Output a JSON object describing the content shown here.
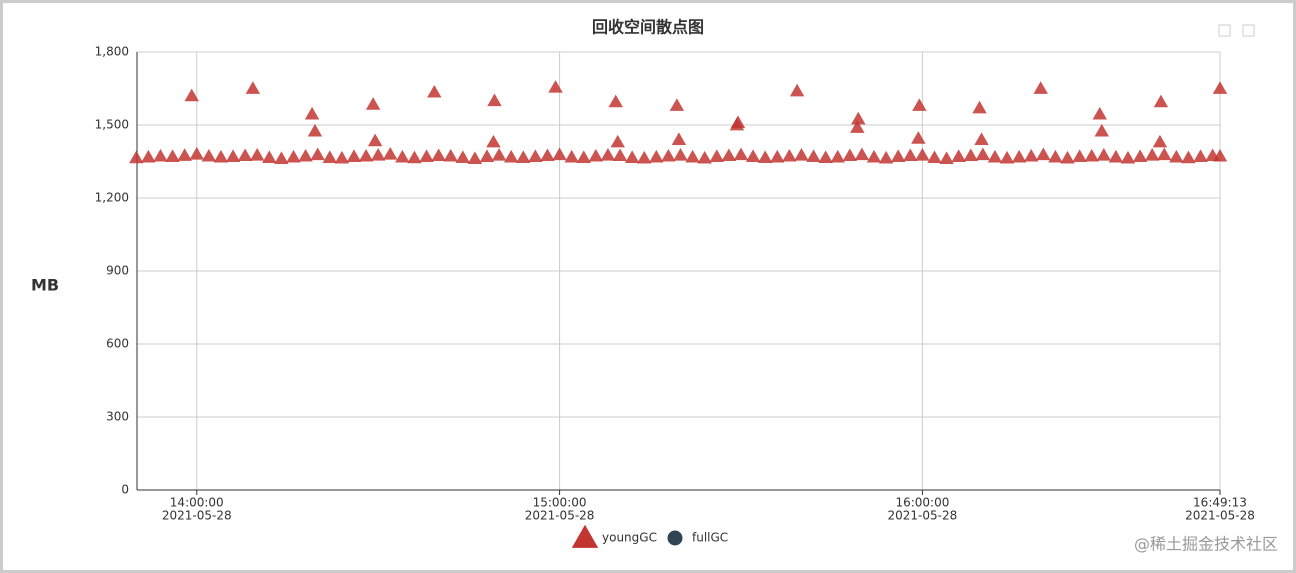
{
  "chart_data": {
    "type": "scatter",
    "title": "回收空间散点图",
    "y_label": "MB",
    "watermark": "@稀土掘金技术社区",
    "ylim": [
      0,
      1800
    ],
    "yticks": [
      0,
      300,
      600,
      900,
      {
        "value": 1200,
        "label": "1,200"
      },
      {
        "value": 1500,
        "label": "1,500"
      },
      {
        "value": 1800,
        "label": "1,800"
      }
    ],
    "xlim": [
      "2021-05-28 13:50:07",
      "2021-05-28 16:49:13"
    ],
    "xticks": [
      {
        "value": "2021-05-28 14:00:00",
        "label": [
          "14:00:00",
          "2021-05-28"
        ]
      },
      {
        "value": "2021-05-28 15:00:00",
        "label": [
          "15:00:00",
          "2021-05-28"
        ]
      },
      {
        "value": "2021-05-28 16:00:00",
        "label": [
          "16:00:00",
          "2021-05-28"
        ]
      },
      {
        "value": "2021-05-28 16:49:13",
        "label": [
          "16:49:13",
          "2021-05-28"
        ]
      }
    ],
    "grid": true,
    "legend": "bottom",
    "series": [
      {
        "name": "youngGC",
        "color": "#c23531",
        "symbol": "triangle",
        "x": [
          "2021-05-28 13:50:00",
          "2021-05-28 13:52:00",
          "2021-05-28 13:54:00",
          "2021-05-28 13:56:00",
          "2021-05-28 13:58:00",
          "2021-05-28 14:00:00",
          "2021-05-28 14:02:00",
          "2021-05-28 14:04:00",
          "2021-05-28 14:06:00",
          "2021-05-28 14:08:00",
          "2021-05-28 14:10:00",
          "2021-05-28 14:12:00",
          "2021-05-28 14:14:00",
          "2021-05-28 14:16:00",
          "2021-05-28 14:18:00",
          "2021-05-28 14:20:00",
          "2021-05-28 14:22:00",
          "2021-05-28 14:24:00",
          "2021-05-28 14:26:00",
          "2021-05-28 14:28:00",
          "2021-05-28 14:30:00",
          "2021-05-28 14:32:00",
          "2021-05-28 14:34:00",
          "2021-05-28 14:36:00",
          "2021-05-28 14:38:00",
          "2021-05-28 14:40:00",
          "2021-05-28 14:42:00",
          "2021-05-28 14:44:00",
          "2021-05-28 14:46:00",
          "2021-05-28 14:48:00",
          "2021-05-28 14:50:00",
          "2021-05-28 14:52:00",
          "2021-05-28 14:54:00",
          "2021-05-28 14:56:00",
          "2021-05-28 14:58:00",
          "2021-05-28 15:00:00",
          "2021-05-28 15:02:00",
          "2021-05-28 15:04:00",
          "2021-05-28 15:06:00",
          "2021-05-28 15:08:00",
          "2021-05-28 15:10:00",
          "2021-05-28 15:12:00",
          "2021-05-28 15:14:00",
          "2021-05-28 15:16:00",
          "2021-05-28 15:18:00",
          "2021-05-28 15:20:00",
          "2021-05-28 15:22:00",
          "2021-05-28 15:24:00",
          "2021-05-28 15:26:00",
          "2021-05-28 15:28:00",
          "2021-05-28 15:30:00",
          "2021-05-28 15:32:00",
          "2021-05-28 15:34:00",
          "2021-05-28 15:36:00",
          "2021-05-28 15:38:00",
          "2021-05-28 15:40:00",
          "2021-05-28 15:42:00",
          "2021-05-28 15:44:00",
          "2021-05-28 15:46:00",
          "2021-05-28 15:48:00",
          "2021-05-28 15:50:00",
          "2021-05-28 15:52:00",
          "2021-05-28 15:54:00",
          "2021-05-28 15:56:00",
          "2021-05-28 15:58:00",
          "2021-05-28 16:00:00",
          "2021-05-28 16:02:00",
          "2021-05-28 16:04:00",
          "2021-05-28 16:06:00",
          "2021-05-28 16:08:00",
          "2021-05-28 16:10:00",
          "2021-05-28 16:12:00",
          "2021-05-28 16:14:00",
          "2021-05-28 16:16:00",
          "2021-05-28 16:18:00",
          "2021-05-28 16:20:00",
          "2021-05-28 16:22:00",
          "2021-05-28 16:24:00",
          "2021-05-28 16:26:00",
          "2021-05-28 16:28:00",
          "2021-05-28 16:30:00",
          "2021-05-28 16:32:00",
          "2021-05-28 16:34:00",
          "2021-05-28 16:36:00",
          "2021-05-28 16:38:00",
          "2021-05-28 16:40:00",
          "2021-05-28 16:42:00",
          "2021-05-28 16:44:00",
          "2021-05-28 16:46:00",
          "2021-05-28 16:48:00",
          "2021-05-28 13:59:10",
          "2021-05-28 14:09:17",
          "2021-05-28 14:19:04",
          "2021-05-28 14:19:33",
          "2021-05-28 14:29:10",
          "2021-05-28 14:29:30",
          "2021-05-28 14:39:17",
          "2021-05-28 14:49:04",
          "2021-05-28 14:49:14",
          "2021-05-28 14:59:20",
          "2021-05-28 15:09:17",
          "2021-05-28 15:09:37",
          "2021-05-28 15:19:24",
          "2021-05-28 15:19:44",
          "2021-05-28 15:29:20",
          "2021-05-28 15:29:30",
          "2021-05-28 15:39:17",
          "2021-05-28 15:49:14",
          "2021-05-28 15:49:24",
          "2021-05-28 15:59:20",
          "2021-05-28 15:59:30",
          "2021-05-28 16:09:27",
          "2021-05-28 16:09:47",
          "2021-05-28 16:19:34",
          "2021-05-28 16:29:20",
          "2021-05-28 16:29:40",
          "2021-05-28 16:39:17",
          "2021-05-28 16:39:27",
          "2021-05-28 16:49:13",
          "2021-05-28 16:49:13"
        ],
        "values": [
          1365,
          1368,
          1372,
          1370,
          1375,
          1380,
          1372,
          1368,
          1370,
          1374,
          1376,
          1366,
          1362,
          1368,
          1372,
          1378,
          1366,
          1364,
          1370,
          1372,
          1376,
          1380,
          1368,
          1365,
          1370,
          1374,
          1372,
          1366,
          1362,
          1370,
          1376,
          1368,
          1366,
          1370,
          1374,
          1378,
          1368,
          1366,
          1372,
          1376,
          1374,
          1366,
          1364,
          1368,
          1372,
          1376,
          1368,
          1364,
          1370,
          1374,
          1378,
          1370,
          1366,
          1368,
          1372,
          1376,
          1370,
          1366,
          1368,
          1374,
          1378,
          1368,
          1364,
          1370,
          1374,
          1376,
          1366,
          1362,
          1370,
          1374,
          1378,
          1368,
          1364,
          1368,
          1372,
          1378,
          1368,
          1364,
          1370,
          1372,
          1376,
          1368,
          1364,
          1370,
          1376,
          1378,
          1368,
          1365,
          1370,
          1374,
          1620,
          1650,
          1545,
          1475,
          1585,
          1435,
          1635,
          1430,
          1600,
          1655,
          1595,
          1430,
          1580,
          1440,
          1500,
          1510,
          1640,
          1490,
          1525,
          1445,
          1580,
          1570,
          1440,
          1650,
          1545,
          1475,
          1430,
          1595,
          1650,
          1372
        ]
      },
      {
        "name": "fullGC",
        "color": "#2f4554",
        "symbol": "circle",
        "x": [],
        "values": []
      }
    ]
  }
}
